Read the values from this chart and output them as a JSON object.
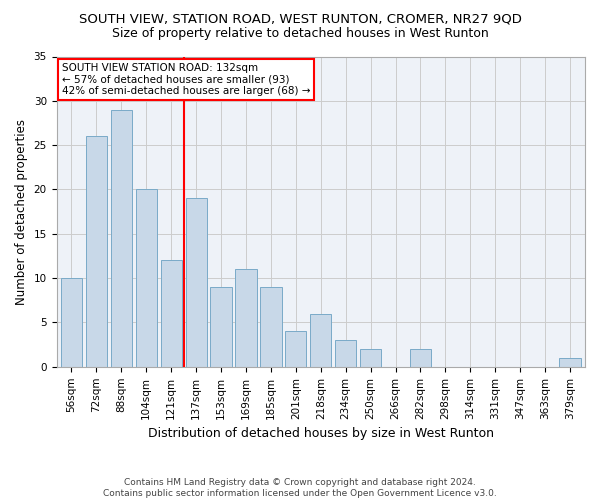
{
  "title": "SOUTH VIEW, STATION ROAD, WEST RUNTON, CROMER, NR27 9QD",
  "subtitle": "Size of property relative to detached houses in West Runton",
  "xlabel": "Distribution of detached houses by size in West Runton",
  "ylabel": "Number of detached properties",
  "footer1": "Contains HM Land Registry data © Crown copyright and database right 2024.",
  "footer2": "Contains public sector information licensed under the Open Government Licence v3.0.",
  "categories": [
    "56sqm",
    "72sqm",
    "88sqm",
    "104sqm",
    "121sqm",
    "137sqm",
    "153sqm",
    "169sqm",
    "185sqm",
    "201sqm",
    "218sqm",
    "234sqm",
    "250sqm",
    "266sqm",
    "282sqm",
    "298sqm",
    "314sqm",
    "331sqm",
    "347sqm",
    "363sqm",
    "379sqm"
  ],
  "values": [
    10,
    26,
    29,
    20,
    12,
    19,
    9,
    11,
    9,
    4,
    6,
    3,
    2,
    0,
    2,
    0,
    0,
    0,
    0,
    0,
    1
  ],
  "bar_color": "#c8d8e8",
  "bar_edge_color": "#7aaac8",
  "vline_index": 5,
  "vline_color": "red",
  "annotation_box_text": "SOUTH VIEW STATION ROAD: 132sqm\n← 57% of detached houses are smaller (93)\n42% of semi-detached houses are larger (68) →",
  "ylim": [
    0,
    35
  ],
  "yticks": [
    0,
    5,
    10,
    15,
    20,
    25,
    30,
    35
  ],
  "grid_color": "#cccccc",
  "bg_color": "#eef2f8",
  "title_fontsize": 9.5,
  "subtitle_fontsize": 9,
  "xlabel_fontsize": 9,
  "ylabel_fontsize": 8.5,
  "tick_fontsize": 7.5,
  "annotation_fontsize": 7.5,
  "footer_fontsize": 6.5
}
